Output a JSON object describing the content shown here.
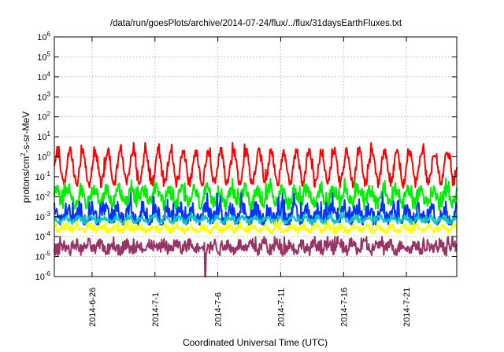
{
  "chart_data": {
    "type": "line",
    "title": "/data/run/goesPlots/archive/2014-07-24/flux/../flux/31daysEarthFluxes.txt",
    "xlabel": "Coordinated Universal Time (UTC)",
    "ylabel": "protons/cm²-s-sr-MeV",
    "xlim": [
      "2014-06-23",
      "2014-07-25"
    ],
    "ylim": [
      1e-06,
      1000000.0
    ],
    "yscale": "log",
    "grid": true,
    "x_ticks": [
      "2014-6-26",
      "2014-7-1",
      "2014-7-6",
      "2014-7-11",
      "2014-7-16",
      "2014-7-21"
    ],
    "y_ticks": [
      {
        "base": "10",
        "exp": "-6",
        "value": 1e-06
      },
      {
        "base": "10",
        "exp": "-5",
        "value": 1e-05
      },
      {
        "base": "10",
        "exp": "-4",
        "value": 0.0001
      },
      {
        "base": "10",
        "exp": "-3",
        "value": 0.001
      },
      {
        "base": "10",
        "exp": "-2",
        "value": 0.01
      },
      {
        "base": "10",
        "exp": "-1",
        "value": 0.1
      },
      {
        "base": "10",
        "exp": "0",
        "value": 1
      },
      {
        "base": "10",
        "exp": "1",
        "value": 10
      },
      {
        "base": "10",
        "exp": "2",
        "value": 100
      },
      {
        "base": "10",
        "exp": "3",
        "value": 1000
      },
      {
        "base": "10",
        "exp": "4",
        "value": 10000
      },
      {
        "base": "10",
        "exp": "5",
        "value": 100000
      },
      {
        "base": "10",
        "exp": "6",
        "value": 1000000
      }
    ],
    "series": [
      {
        "color": "#ff0000",
        "center": 0.3,
        "daily_amp": 0.8,
        "noise": 0.25,
        "min": 0.02,
        "max": 5
      },
      {
        "color": "#00ee00",
        "center": 0.01,
        "daily_amp": 0.35,
        "noise": 0.35,
        "min": 0.002,
        "max": 0.08
      },
      {
        "color": "#0033ff",
        "center": 0.0012,
        "daily_amp": 0.3,
        "noise": 0.4,
        "min": 0.0004,
        "max": 0.015
      },
      {
        "color": "#00ccbb",
        "center": 0.0007,
        "daily_amp": 0.12,
        "noise": 0.12,
        "min": 0.0004,
        "max": 0.003
      },
      {
        "color": "#ffff00",
        "center": 0.00025,
        "daily_amp": 0.12,
        "noise": 0.15,
        "min": 0.0001,
        "max": 0.0006
      },
      {
        "color": "#993366",
        "center": 3e-05,
        "daily_amp": 0.15,
        "noise": 0.3,
        "min": 8e-06,
        "max": 0.0001
      }
    ],
    "dip": {
      "date": "2014-07-05",
      "value": 1e-06
    }
  }
}
